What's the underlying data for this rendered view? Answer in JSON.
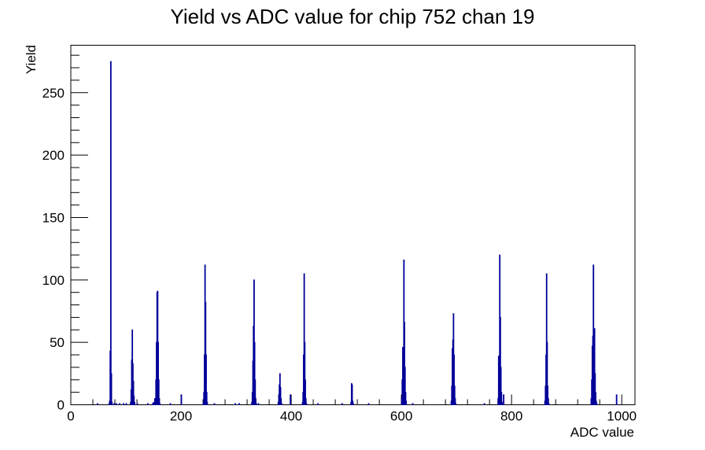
{
  "chart_data": {
    "type": "histogram",
    "title": "Yield vs ADC value for chip 752 chan 19",
    "xlabel": "ADC value",
    "ylabel": "Yield",
    "xlim": [
      0,
      1024
    ],
    "ylim": [
      0,
      288
    ],
    "x_ticks": [
      0,
      200,
      400,
      600,
      800,
      1000
    ],
    "y_ticks": [
      0,
      50,
      100,
      150,
      200,
      250
    ],
    "grid": false,
    "line_color": "#000099",
    "bins": [
      [
        48,
        1
      ],
      [
        69,
        1
      ],
      [
        70,
        3
      ],
      [
        71,
        43
      ],
      [
        72,
        275
      ],
      [
        73,
        25
      ],
      [
        74,
        2
      ],
      [
        78,
        1
      ],
      [
        82,
        1
      ],
      [
        88,
        1
      ],
      [
        95,
        1
      ],
      [
        100,
        1
      ],
      [
        108,
        2
      ],
      [
        109,
        12
      ],
      [
        110,
        36
      ],
      [
        111,
        60
      ],
      [
        112,
        33
      ],
      [
        113,
        19
      ],
      [
        114,
        7
      ],
      [
        115,
        2
      ],
      [
        120,
        1
      ],
      [
        139,
        1
      ],
      [
        148,
        1
      ],
      [
        150,
        2
      ],
      [
        152,
        5
      ],
      [
        154,
        20
      ],
      [
        155,
        50
      ],
      [
        156,
        90
      ],
      [
        157,
        91
      ],
      [
        158,
        50
      ],
      [
        159,
        20
      ],
      [
        160,
        5
      ],
      [
        161,
        1
      ],
      [
        180,
        1
      ],
      [
        200,
        8
      ],
      [
        240,
        2
      ],
      [
        241,
        10
      ],
      [
        242,
        40
      ],
      [
        243,
        112
      ],
      [
        244,
        82
      ],
      [
        245,
        40
      ],
      [
        246,
        10
      ],
      [
        247,
        2
      ],
      [
        260,
        1
      ],
      [
        298,
        1
      ],
      [
        305,
        1
      ],
      [
        328,
        2
      ],
      [
        329,
        10
      ],
      [
        330,
        35
      ],
      [
        331,
        63
      ],
      [
        332,
        100
      ],
      [
        333,
        50
      ],
      [
        334,
        20
      ],
      [
        335,
        5
      ],
      [
        336,
        1
      ],
      [
        340,
        1
      ],
      [
        376,
        2
      ],
      [
        377,
        8
      ],
      [
        378,
        16
      ],
      [
        379,
        25
      ],
      [
        380,
        14
      ],
      [
        381,
        5
      ],
      [
        382,
        1
      ],
      [
        398,
        8
      ],
      [
        420,
        2
      ],
      [
        421,
        10
      ],
      [
        422,
        40
      ],
      [
        423,
        105
      ],
      [
        424,
        50
      ],
      [
        425,
        20
      ],
      [
        426,
        5
      ],
      [
        427,
        1
      ],
      [
        448,
        1
      ],
      [
        492,
        1
      ],
      [
        508,
        2
      ],
      [
        509,
        17
      ],
      [
        510,
        16
      ],
      [
        511,
        3
      ],
      [
        512,
        1
      ],
      [
        540,
        1
      ],
      [
        600,
        5
      ],
      [
        601,
        20
      ],
      [
        602,
        46
      ],
      [
        603,
        40
      ],
      [
        604,
        116
      ],
      [
        605,
        66
      ],
      [
        606,
        30
      ],
      [
        607,
        10
      ],
      [
        608,
        3
      ],
      [
        620,
        1
      ],
      [
        690,
        3
      ],
      [
        691,
        15
      ],
      [
        692,
        45
      ],
      [
        693,
        52
      ],
      [
        694,
        73
      ],
      [
        695,
        40
      ],
      [
        696,
        15
      ],
      [
        697,
        5
      ],
      [
        698,
        1
      ],
      [
        750,
        1
      ],
      [
        775,
        5
      ],
      [
        776,
        39
      ],
      [
        777,
        34
      ],
      [
        778,
        120
      ],
      [
        779,
        70
      ],
      [
        780,
        30
      ],
      [
        781,
        10
      ],
      [
        782,
        2
      ],
      [
        785,
        8
      ],
      [
        860,
        3
      ],
      [
        861,
        15
      ],
      [
        862,
        40
      ],
      [
        863,
        105
      ],
      [
        864,
        50
      ],
      [
        865,
        15
      ],
      [
        866,
        5
      ],
      [
        867,
        1
      ],
      [
        944,
        5
      ],
      [
        945,
        20
      ],
      [
        946,
        47
      ],
      [
        947,
        55
      ],
      [
        948,
        112
      ],
      [
        949,
        60
      ],
      [
        950,
        61
      ],
      [
        951,
        25
      ],
      [
        952,
        10
      ],
      [
        953,
        3
      ],
      [
        954,
        1
      ],
      [
        990,
        8
      ]
    ]
  }
}
